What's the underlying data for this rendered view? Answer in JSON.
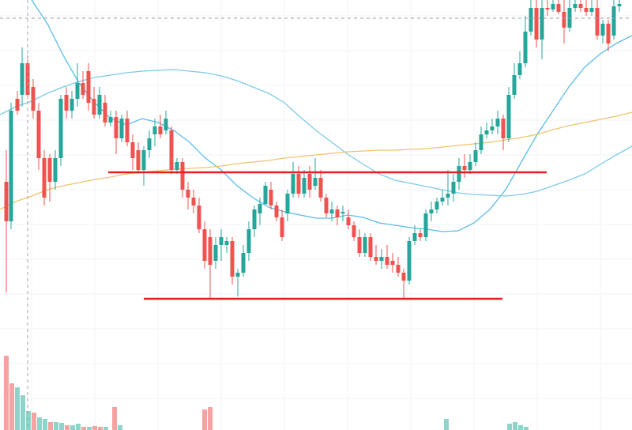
{
  "chart_data": {
    "type": "candlestick",
    "title": "",
    "xlabel": "",
    "ylabel": "",
    "ylim": [
      0,
      544
    ],
    "colors": {
      "up": "#26a69a",
      "down": "#ef5350",
      "up_volume": "#8fd4cb",
      "down_volume": "#f4a3a2",
      "ma_fast": "#5bbde6",
      "ma_mid": "#7ccbe8",
      "ma_slow": "#f0c36d",
      "levels": "#e3211c",
      "crosshair": "#9aa0a6"
    },
    "candles": [
      [
        8,
        230,
        280,
        370,
        190
      ],
      [
        14,
        280,
        140,
        290,
        130
      ],
      [
        22,
        125,
        140,
        145,
        115
      ],
      [
        28,
        120,
        80,
        135,
        60
      ],
      [
        35,
        80,
        120,
        125,
        70
      ],
      [
        42,
        110,
        140,
        150,
        100
      ],
      [
        49,
        140,
        200,
        215,
        130
      ],
      [
        56,
        200,
        250,
        260,
        190
      ],
      [
        63,
        200,
        230,
        255,
        195
      ],
      [
        70,
        230,
        200,
        240,
        190
      ],
      [
        77,
        200,
        125,
        210,
        120
      ],
      [
        84,
        120,
        140,
        150,
        110
      ],
      [
        91,
        140,
        125,
        150,
        115
      ],
      [
        98,
        125,
        105,
        135,
        80
      ],
      [
        105,
        105,
        120,
        125,
        90
      ],
      [
        112,
        90,
        130,
        140,
        80
      ],
      [
        119,
        125,
        145,
        150,
        110
      ],
      [
        126,
        145,
        120,
        150,
        110
      ],
      [
        133,
        130,
        155,
        160,
        120
      ],
      [
        140,
        155,
        148,
        160,
        140
      ],
      [
        147,
        148,
        175,
        195,
        140
      ],
      [
        154,
        175,
        150,
        180,
        145
      ],
      [
        161,
        150,
        180,
        185,
        140
      ],
      [
        168,
        180,
        200,
        215,
        170
      ],
      [
        175,
        190,
        215,
        220,
        180
      ],
      [
        182,
        215,
        190,
        235,
        185
      ],
      [
        189,
        190,
        175,
        200,
        165
      ],
      [
        196,
        170,
        160,
        185,
        150
      ],
      [
        203,
        160,
        170,
        175,
        145
      ],
      [
        210,
        165,
        150,
        170,
        140
      ],
      [
        217,
        165,
        215,
        220,
        160
      ],
      [
        224,
        215,
        205,
        220,
        200
      ],
      [
        231,
        205,
        240,
        250,
        200
      ],
      [
        238,
        240,
        250,
        265,
        230
      ],
      [
        245,
        250,
        260,
        270,
        240
      ],
      [
        252,
        260,
        290,
        295,
        250
      ],
      [
        259,
        290,
        330,
        340,
        280
      ],
      [
        266,
        300,
        335,
        378,
        290
      ],
      [
        273,
        330,
        310,
        340,
        300
      ],
      [
        280,
        310,
        300,
        330,
        290
      ],
      [
        287,
        310,
        305,
        320,
        300
      ],
      [
        294,
        305,
        350,
        360,
        300
      ],
      [
        301,
        350,
        345,
        375,
        340
      ],
      [
        308,
        345,
        320,
        350,
        310
      ],
      [
        315,
        320,
        290,
        330,
        280
      ],
      [
        322,
        290,
        265,
        300,
        260
      ],
      [
        329,
        270,
        258,
        285,
        250
      ],
      [
        336,
        258,
        235,
        260,
        230
      ],
      [
        343,
        240,
        260,
        265,
        230
      ],
      [
        350,
        260,
        275,
        280,
        255
      ],
      [
        357,
        275,
        300,
        305,
        265
      ],
      [
        364,
        270,
        245,
        280,
        240
      ],
      [
        371,
        245,
        220,
        250,
        205
      ],
      [
        378,
        220,
        245,
        250,
        210
      ],
      [
        385,
        245,
        225,
        250,
        215
      ],
      [
        392,
        220,
        240,
        250,
        210
      ],
      [
        399,
        235,
        225,
        240,
        200
      ],
      [
        406,
        225,
        250,
        255,
        215
      ],
      [
        413,
        250,
        270,
        275,
        245
      ],
      [
        420,
        270,
        265,
        280,
        255
      ],
      [
        427,
        265,
        275,
        285,
        260
      ],
      [
        434,
        270,
        268,
        280,
        260
      ],
      [
        441,
        275,
        285,
        290,
        265
      ],
      [
        448,
        285,
        300,
        305,
        280
      ],
      [
        455,
        300,
        320,
        325,
        290
      ],
      [
        462,
        320,
        300,
        325,
        295
      ],
      [
        469,
        300,
        325,
        330,
        295
      ],
      [
        476,
        325,
        330,
        335,
        310
      ],
      [
        483,
        330,
        325,
        340,
        315
      ],
      [
        490,
        325,
        335,
        340,
        310
      ],
      [
        497,
        330,
        335,
        345,
        320
      ],
      [
        504,
        335,
        345,
        350,
        325
      ],
      [
        511,
        345,
        355,
        378,
        340
      ],
      [
        518,
        355,
        305,
        360,
        300
      ],
      [
        525,
        305,
        295,
        310,
        285
      ],
      [
        532,
        295,
        300,
        305,
        290
      ],
      [
        539,
        300,
        270,
        305,
        265
      ],
      [
        546,
        270,
        265,
        280,
        255
      ],
      [
        553,
        265,
        255,
        270,
        250
      ],
      [
        560,
        255,
        250,
        260,
        240
      ],
      [
        567,
        250,
        245,
        260,
        215
      ],
      [
        574,
        245,
        230,
        255,
        220
      ],
      [
        581,
        230,
        210,
        240,
        200
      ],
      [
        588,
        210,
        215,
        225,
        195
      ],
      [
        595,
        215,
        205,
        220,
        195
      ],
      [
        602,
        205,
        190,
        210,
        180
      ],
      [
        609,
        190,
        170,
        195,
        160
      ],
      [
        616,
        170,
        165,
        175,
        155
      ],
      [
        623,
        165,
        160,
        170,
        150
      ],
      [
        630,
        160,
        150,
        170,
        140
      ],
      [
        637,
        150,
        175,
        190,
        145
      ],
      [
        644,
        175,
        120,
        180,
        110
      ],
      [
        651,
        120,
        95,
        125,
        80
      ],
      [
        658,
        95,
        80,
        100,
        65
      ],
      [
        665,
        80,
        40,
        85,
        20
      ],
      [
        672,
        40,
        10,
        45,
        0
      ],
      [
        679,
        10,
        50,
        60,
        0
      ],
      [
        686,
        50,
        10,
        75,
        0
      ],
      [
        693,
        10,
        12,
        20,
        0
      ],
      [
        700,
        12,
        5,
        15,
        0
      ],
      [
        707,
        5,
        15,
        18,
        0
      ],
      [
        714,
        15,
        35,
        55,
        0
      ],
      [
        721,
        35,
        10,
        40,
        0
      ],
      [
        728,
        10,
        5,
        15,
        0
      ],
      [
        735,
        5,
        10,
        15,
        0
      ],
      [
        742,
        10,
        15,
        20,
        0
      ],
      [
        749,
        15,
        10,
        20,
        0
      ],
      [
        756,
        10,
        45,
        50,
        0
      ],
      [
        763,
        45,
        30,
        55,
        25
      ],
      [
        770,
        30,
        55,
        65,
        25
      ],
      [
        777,
        45,
        8,
        50,
        0
      ],
      [
        784,
        8,
        5,
        15,
        0
      ]
    ],
    "volume": [
      [
        8,
        450,
        "down"
      ],
      [
        15,
        485,
        "down"
      ],
      [
        22,
        490,
        "up"
      ],
      [
        29,
        500,
        "up"
      ],
      [
        36,
        520,
        "up"
      ],
      [
        43,
        522,
        "down"
      ],
      [
        50,
        528,
        "up"
      ],
      [
        57,
        530,
        "up"
      ],
      [
        64,
        534,
        "down"
      ],
      [
        71,
        534,
        "up"
      ],
      [
        78,
        535,
        "up"
      ],
      [
        85,
        538,
        "down"
      ],
      [
        92,
        538,
        "up"
      ],
      [
        99,
        536,
        "up"
      ],
      [
        106,
        540,
        "down"
      ],
      [
        113,
        540,
        "up"
      ],
      [
        120,
        539,
        "down"
      ],
      [
        127,
        540,
        "down"
      ],
      [
        134,
        540,
        "up"
      ],
      [
        145,
        515,
        "down"
      ],
      [
        152,
        538,
        "up"
      ],
      [
        259,
        518,
        "down"
      ],
      [
        266,
        515,
        "down"
      ],
      [
        565,
        530,
        "up"
      ],
      [
        645,
        536,
        "up"
      ],
      [
        652,
        534,
        "up"
      ],
      [
        659,
        538,
        "up"
      ],
      [
        666,
        540,
        "up"
      ]
    ],
    "ma_fast": [
      [
        40,
        0
      ],
      [
        60,
        30
      ],
      [
        80,
        70
      ],
      [
        100,
        105
      ],
      [
        120,
        130
      ],
      [
        140,
        150
      ],
      [
        160,
        158
      ],
      [
        180,
        150
      ],
      [
        200,
        155
      ],
      [
        220,
        165
      ],
      [
        240,
        180
      ],
      [
        260,
        200
      ],
      [
        280,
        215
      ],
      [
        300,
        235
      ],
      [
        320,
        250
      ],
      [
        340,
        262
      ],
      [
        360,
        268
      ],
      [
        380,
        272
      ],
      [
        400,
        276
      ],
      [
        420,
        276
      ],
      [
        440,
        272
      ],
      [
        460,
        275
      ],
      [
        480,
        282
      ],
      [
        500,
        285
      ],
      [
        520,
        288
      ],
      [
        540,
        290
      ],
      [
        560,
        293
      ],
      [
        580,
        292
      ],
      [
        600,
        282
      ],
      [
        620,
        265
      ],
      [
        640,
        240
      ],
      [
        660,
        205
      ],
      [
        680,
        170
      ],
      [
        700,
        140
      ],
      [
        720,
        110
      ],
      [
        740,
        85
      ],
      [
        760,
        68
      ],
      [
        780,
        55
      ],
      [
        800,
        45
      ]
    ],
    "ma_mid": [
      [
        0,
        145
      ],
      [
        20,
        135
      ],
      [
        40,
        128
      ],
      [
        60,
        118
      ],
      [
        80,
        110
      ],
      [
        100,
        103
      ],
      [
        120,
        98
      ],
      [
        140,
        95
      ],
      [
        160,
        92
      ],
      [
        180,
        90
      ],
      [
        200,
        89
      ],
      [
        220,
        88
      ],
      [
        240,
        90
      ],
      [
        260,
        92
      ],
      [
        280,
        96
      ],
      [
        300,
        102
      ],
      [
        320,
        110
      ],
      [
        340,
        118
      ],
      [
        360,
        130
      ],
      [
        380,
        148
      ],
      [
        400,
        165
      ],
      [
        420,
        180
      ],
      [
        440,
        195
      ],
      [
        460,
        208
      ],
      [
        480,
        220
      ],
      [
        500,
        228
      ],
      [
        520,
        232
      ],
      [
        540,
        236
      ],
      [
        560,
        240
      ],
      [
        580,
        244
      ],
      [
        600,
        246
      ],
      [
        620,
        247
      ],
      [
        640,
        248
      ],
      [
        660,
        246
      ],
      [
        680,
        242
      ],
      [
        700,
        235
      ],
      [
        720,
        228
      ],
      [
        740,
        220
      ],
      [
        760,
        208
      ],
      [
        780,
        196
      ],
      [
        800,
        185
      ]
    ],
    "ma_slow": [
      [
        0,
        265
      ],
      [
        20,
        255
      ],
      [
        40,
        248
      ],
      [
        60,
        240
      ],
      [
        80,
        235
      ],
      [
        100,
        231
      ],
      [
        120,
        227
      ],
      [
        140,
        224
      ],
      [
        160,
        220
      ],
      [
        180,
        218
      ],
      [
        200,
        216
      ],
      [
        220,
        214
      ],
      [
        240,
        213
      ],
      [
        260,
        212
      ],
      [
        280,
        210
      ],
      [
        300,
        207
      ],
      [
        320,
        205
      ],
      [
        340,
        203
      ],
      [
        360,
        200
      ],
      [
        380,
        198
      ],
      [
        400,
        196
      ],
      [
        420,
        194
      ],
      [
        440,
        192
      ],
      [
        460,
        191
      ],
      [
        480,
        190
      ],
      [
        500,
        190
      ],
      [
        520,
        189
      ],
      [
        540,
        188
      ],
      [
        560,
        186
      ],
      [
        580,
        184
      ],
      [
        600,
        182
      ],
      [
        620,
        180
      ],
      [
        640,
        177
      ],
      [
        660,
        174
      ],
      [
        680,
        170
      ],
      [
        700,
        164
      ],
      [
        720,
        159
      ],
      [
        740,
        155
      ],
      [
        760,
        151
      ],
      [
        780,
        147
      ],
      [
        800,
        142
      ]
    ],
    "levels": [
      {
        "x1": 137,
        "x2": 692,
        "y": 218
      },
      {
        "x1": 182,
        "x2": 636,
        "y": 378
      }
    ],
    "crosshair": {
      "x": 35,
      "y": 23
    },
    "grid": true
  }
}
